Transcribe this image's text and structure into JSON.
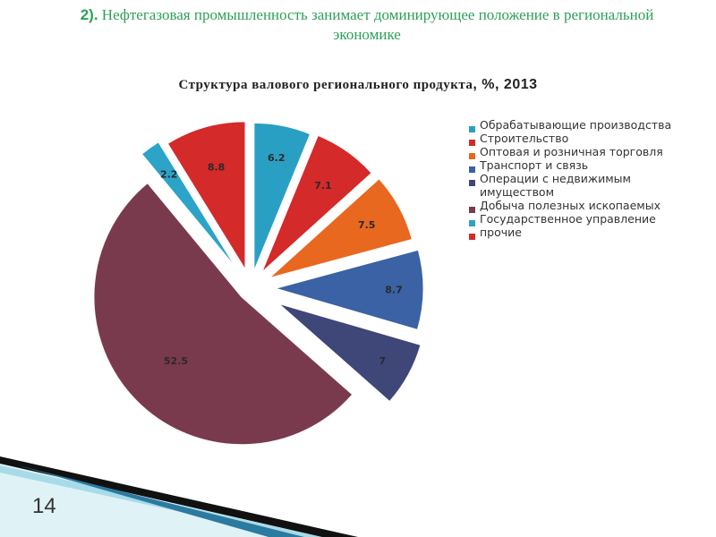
{
  "slide": {
    "heading_number": "2).",
    "heading_text": " Нефтегазовая промышленность занимает доминирующее положение в региональной экономике",
    "page_number": "14"
  },
  "chart_data": {
    "type": "pie",
    "title": "Структура валового регионального продукта",
    "title_suffix": ", %, 2013",
    "slices": [
      {
        "label": "Обрабатывающие производства",
        "value": 6.2,
        "value_label": "6.2",
        "color": "#2a9fc4"
      },
      {
        "label": "Строительство",
        "value": 7.1,
        "value_label": "7.1",
        "color": "#d42a2a"
      },
      {
        "label": "Оптовая и розничная торговля",
        "value": 7.5,
        "value_label": "7.5",
        "color": "#e8681f"
      },
      {
        "label": "Транспорт и связь",
        "value": 8.7,
        "value_label": "8.7",
        "color": "#3a62a4"
      },
      {
        "label": "Операции с недвижимым имуществом",
        "value": 7,
        "value_label": "7",
        "color": "#3f4678"
      },
      {
        "label": "Добыча полезных ископаемых",
        "value": 52.5,
        "value_label": "52.5",
        "color": "#7a3a4e"
      },
      {
        "label": " Государственное управление",
        "value": 2.2,
        "value_label": "2.2",
        "color": "#2ba4c8"
      },
      {
        "label": "прочие",
        "value": 8.8,
        "value_label": "8.8",
        "color": "#d42a2a"
      }
    ],
    "legend_position": "right"
  }
}
